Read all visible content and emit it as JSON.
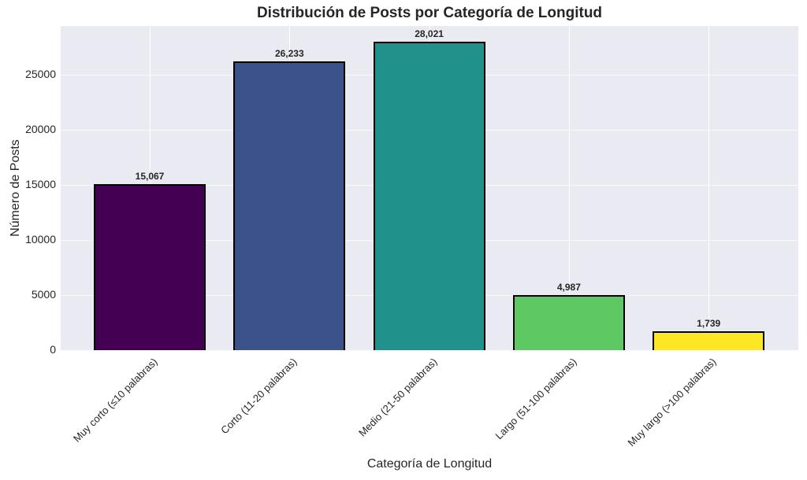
{
  "chart_data": {
    "type": "bar",
    "title": "Distribución de Posts por Categoría de Longitud",
    "xlabel": "Categoría de Longitud",
    "ylabel": "Número de Posts",
    "categories": [
      "Muy corto (≤10 palabras)",
      "Corto (11-20 palabras)",
      "Medio (21-50 palabras)",
      "Largo (51-100 palabras)",
      "Muy largo (>100 palabras)"
    ],
    "values": [
      15067,
      26233,
      28021,
      4987,
      1739
    ],
    "value_labels": [
      "15,067",
      "26,233",
      "28,021",
      "4,987",
      "1,739"
    ],
    "colors": [
      "#440154",
      "#3b528b",
      "#21918c",
      "#5ec962",
      "#fde725"
    ],
    "yticks": [
      0,
      5000,
      10000,
      15000,
      20000,
      25000
    ],
    "ytick_labels": [
      "0",
      "5000",
      "10000",
      "15000",
      "20000",
      "25000"
    ],
    "ylim": [
      0,
      29420
    ],
    "grid": true,
    "legend": null
  }
}
